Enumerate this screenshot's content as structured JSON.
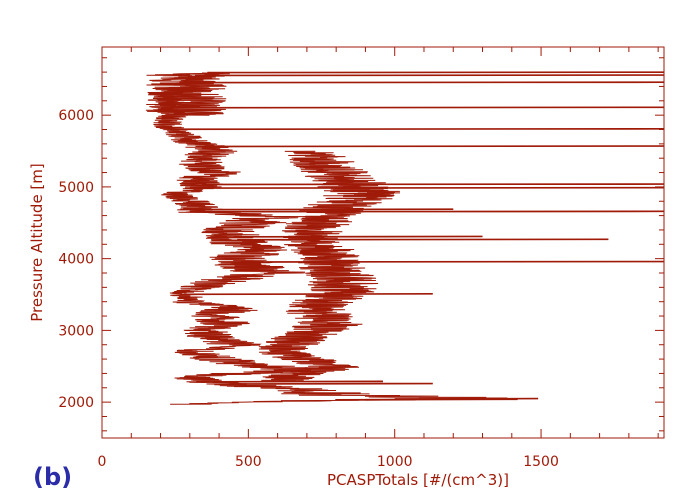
{
  "panel_label": "(b)",
  "colors": {
    "data": "#a01a08",
    "axes": "#a01a08",
    "panel_label": "#2b2ca8"
  },
  "chart_data": {
    "type": "line",
    "title": "",
    "xlabel": "PCASPTotals [#/(cm^3)]",
    "ylabel": "Pressure Altitude [m]",
    "xlim": [
      0,
      1920
    ],
    "ylim": [
      1500,
      6950
    ],
    "xticks": [
      0,
      500,
      1000,
      1500
    ],
    "yticks": [
      2000,
      3000,
      4000,
      5000,
      6000
    ],
    "x_minor_step": 100,
    "y_minor_step": 200,
    "grid": false,
    "legend": "none",
    "series": [
      {
        "profile": [
          [
            1970,
            300
          ],
          [
            2000,
            450
          ],
          [
            2030,
            900
          ],
          [
            2060,
            1200
          ],
          [
            2100,
            800
          ],
          [
            2200,
            600
          ],
          [
            2260,
            400
          ],
          [
            2350,
            300
          ],
          [
            2450,
            650
          ],
          [
            2500,
            550
          ],
          [
            2600,
            400
          ],
          [
            2700,
            300
          ],
          [
            2800,
            450
          ],
          [
            2900,
            380
          ],
          [
            3000,
            350
          ],
          [
            3100,
            420
          ],
          [
            3200,
            380
          ],
          [
            3300,
            450
          ],
          [
            3400,
            300
          ],
          [
            3500,
            280
          ],
          [
            3600,
            330
          ],
          [
            3700,
            420
          ],
          [
            3800,
            580
          ],
          [
            3900,
            500
          ],
          [
            4000,
            450
          ],
          [
            4100,
            560
          ],
          [
            4200,
            480
          ],
          [
            4300,
            450
          ],
          [
            4400,
            430
          ],
          [
            4500,
            520
          ],
          [
            4600,
            600
          ],
          [
            4650,
            300
          ],
          [
            4700,
            350
          ],
          [
            4800,
            300
          ],
          [
            4900,
            250
          ],
          [
            5000,
            350
          ],
          [
            5100,
            320
          ],
          [
            5200,
            400
          ],
          [
            5300,
            330
          ],
          [
            5400,
            350
          ],
          [
            5500,
            380
          ],
          [
            5600,
            330
          ],
          [
            5700,
            280
          ],
          [
            5800,
            240
          ],
          [
            5900,
            220
          ],
          [
            6000,
            250
          ],
          [
            6100,
            200
          ],
          [
            6200,
            240
          ],
          [
            6300,
            230
          ],
          [
            6400,
            280
          ],
          [
            6500,
            330
          ],
          [
            6580,
            360
          ]
        ],
        "secondary_branch": [
          [
            2300,
            600
          ],
          [
            2500,
            780
          ],
          [
            2700,
            600
          ],
          [
            2900,
            680
          ],
          [
            3100,
            790
          ],
          [
            3300,
            720
          ],
          [
            3500,
            810
          ],
          [
            3700,
            830
          ],
          [
            3900,
            780
          ],
          [
            4100,
            760
          ],
          [
            4300,
            700
          ],
          [
            4500,
            740
          ],
          [
            4700,
            790
          ],
          [
            4900,
            900
          ],
          [
            5100,
            830
          ],
          [
            5300,
            760
          ],
          [
            5500,
            720
          ]
        ],
        "spikes": [
          [
            2040,
            1490
          ],
          [
            2030,
            1420
          ],
          [
            2250,
            1130
          ],
          [
            2280,
            960
          ],
          [
            3500,
            1130
          ],
          [
            3950,
            1920
          ],
          [
            4260,
            1730
          ],
          [
            4300,
            1300
          ],
          [
            4650,
            1920
          ],
          [
            4680,
            1200
          ],
          [
            4980,
            1920
          ],
          [
            5030,
            1920
          ],
          [
            5560,
            1920
          ],
          [
            5800,
            1920
          ],
          [
            6100,
            1920
          ],
          [
            6450,
            1920
          ],
          [
            6550,
            1920
          ],
          [
            6590,
            1920
          ]
        ]
      }
    ]
  }
}
